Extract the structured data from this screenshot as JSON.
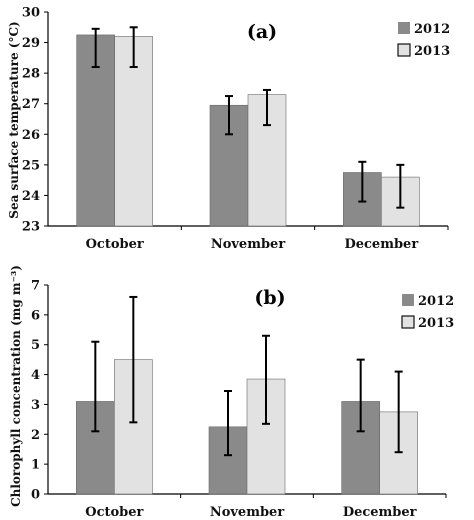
{
  "chart_data": [
    {
      "type": "bar",
      "title": "(a)",
      "ylabel": "Sea surface temperature (°C)",
      "categories": [
        "October",
        "November",
        "December"
      ],
      "ylim": [
        23,
        30
      ],
      "yticks": [
        23,
        24,
        25,
        26,
        27,
        28,
        29,
        30
      ],
      "legend_position": "top-right",
      "grid": false,
      "series": [
        {
          "name": "2012",
          "color": "#8a8a8a",
          "values": [
            29.25,
            26.95,
            24.75
          ],
          "err_low": [
            28.2,
            26.0,
            23.8
          ],
          "err_high": [
            29.45,
            27.25,
            25.1
          ]
        },
        {
          "name": "2013",
          "color": "#e2e2e2",
          "values": [
            29.2,
            27.3,
            24.6
          ],
          "err_low": [
            28.2,
            26.3,
            23.6
          ],
          "err_high": [
            29.5,
            27.45,
            25.0
          ]
        }
      ]
    },
    {
      "type": "bar",
      "title": "(b)",
      "ylabel": "Chlorophyll concentration (mg m⁻³)",
      "categories": [
        "October",
        "November",
        "December"
      ],
      "ylim": [
        0,
        7
      ],
      "yticks": [
        0,
        1,
        2,
        3,
        4,
        5,
        6,
        7
      ],
      "legend_position": "top-right",
      "grid": false,
      "series": [
        {
          "name": "2012",
          "color": "#8a8a8a",
          "values": [
            3.1,
            2.25,
            3.1
          ],
          "err_low": [
            2.1,
            1.3,
            2.1
          ],
          "err_high": [
            5.1,
            3.45,
            4.5
          ]
        },
        {
          "name": "2013",
          "color": "#e2e2e2",
          "values": [
            4.5,
            3.85,
            2.75
          ],
          "err_low": [
            2.4,
            2.35,
            1.4
          ],
          "err_high": [
            6.6,
            5.3,
            4.1
          ]
        }
      ]
    }
  ]
}
